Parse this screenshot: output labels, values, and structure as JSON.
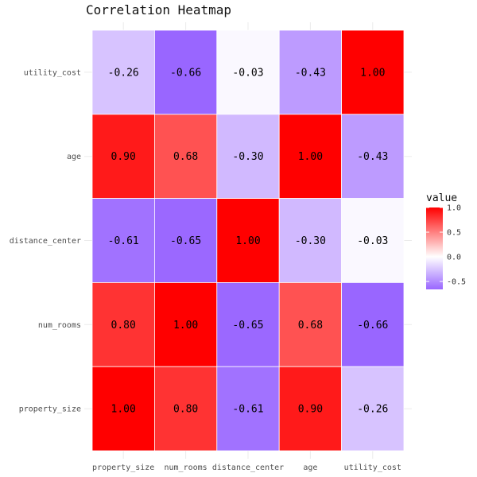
{
  "chart_data": {
    "type": "heatmap",
    "title": "Correlation Heatmap",
    "xlabel": "",
    "ylabel": "",
    "x_categories": [
      "property_size",
      "num_rooms",
      "distance_center",
      "age",
      "utility_cost"
    ],
    "y_categories": [
      "utility_cost",
      "age",
      "distance_center",
      "num_rooms",
      "property_size"
    ],
    "values": [
      [
        -0.26,
        -0.66,
        -0.03,
        -0.43,
        1.0
      ],
      [
        0.9,
        0.68,
        -0.3,
        1.0,
        -0.43
      ],
      [
        -0.61,
        -0.65,
        1.0,
        -0.3,
        -0.03
      ],
      [
        0.8,
        1.0,
        -0.65,
        0.68,
        -0.66
      ],
      [
        1.0,
        0.8,
        -0.61,
        0.9,
        -0.26
      ]
    ],
    "value_labels": [
      [
        "-0.26",
        "-0.66",
        "-0.03",
        "-0.43",
        "1.00"
      ],
      [
        "0.90",
        "0.68",
        "-0.30",
        "1.00",
        "-0.43"
      ],
      [
        "-0.61",
        "-0.65",
        "1.00",
        "-0.30",
        "-0.03"
      ],
      [
        "0.80",
        "1.00",
        "-0.65",
        "0.68",
        "-0.66"
      ],
      [
        "1.00",
        "0.80",
        "-0.61",
        "0.90",
        "-0.26"
      ]
    ],
    "color_scale": {
      "low": "#9966ff",
      "mid": "#ffffff",
      "high": "#ff0000",
      "limits": [
        -0.66,
        1.0
      ]
    },
    "legend": {
      "title": "value",
      "placement": "right",
      "ticks": [
        1.0,
        0.5,
        0.0,
        -0.5
      ],
      "tick_labels": [
        "1.0",
        "0.5",
        "0.0",
        "-0.5"
      ]
    },
    "grid": true
  }
}
